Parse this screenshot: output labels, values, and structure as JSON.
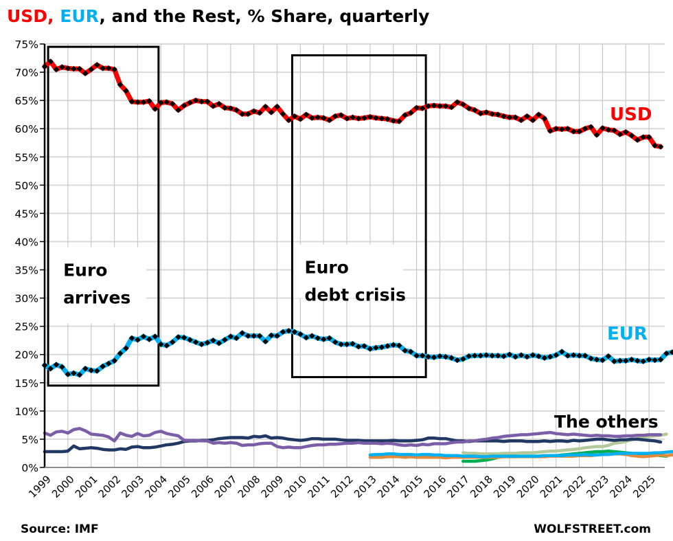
{
  "chart_data": {
    "type": "line",
    "title": {
      "parts": [
        {
          "text": "USD, ",
          "color": "#ff0000"
        },
        {
          "text": "EUR",
          "color": "#00b0f0"
        },
        {
          "text": ", and the Rest, % Share, quarterly",
          "color": "#000000"
        }
      ]
    },
    "xlabel": "",
    "ylabel": "",
    "ylim": [
      0,
      75
    ],
    "y_ticks": [
      "0%",
      "5%",
      "10%",
      "15%",
      "20%",
      "25%",
      "30%",
      "35%",
      "40%",
      "45%",
      "50%",
      "55%",
      "60%",
      "65%",
      "70%",
      "75%"
    ],
    "y_tick_values": [
      0,
      5,
      10,
      15,
      20,
      25,
      30,
      35,
      40,
      45,
      50,
      55,
      60,
      65,
      70,
      75
    ],
    "x_ticks": [
      "1999",
      "2000",
      "2001",
      "2002",
      "2003",
      "2004",
      "2005",
      "2006",
      "2007",
      "2008",
      "2009",
      "2010",
      "2011",
      "2012",
      "2013",
      "2014",
      "2015",
      "2016",
      "2017",
      "2018",
      "2019",
      "2020",
      "2021",
      "2022",
      "2023",
      "2024",
      "2025"
    ],
    "xlim": [
      1999,
      2025.65
    ],
    "grid": true,
    "legend": "none (inline series labels)",
    "x_start": 1999.0,
    "x_step": 0.25,
    "series": [
      {
        "name": "USD",
        "color": "#ff0000",
        "marker_color": "#000000",
        "label": "USD",
        "values": [
          71.0,
          71.9,
          70.5,
          70.9,
          70.7,
          70.6,
          70.6,
          69.8,
          70.5,
          71.3,
          70.7,
          70.7,
          70.5,
          67.8,
          66.7,
          64.8,
          64.7,
          64.7,
          64.9,
          63.5,
          64.6,
          64.7,
          64.4,
          63.3,
          64.1,
          64.6,
          65.0,
          64.8,
          64.8,
          64.0,
          64.4,
          63.7,
          63.6,
          63.3,
          62.6,
          62.6,
          63.1,
          62.8,
          63.9,
          62.9,
          63.9,
          62.6,
          61.5,
          62.2,
          61.7,
          62.5,
          61.9,
          62.0,
          61.9,
          61.5,
          62.2,
          62.4,
          61.8,
          62.0,
          61.8,
          61.9,
          62.1,
          61.9,
          61.8,
          61.7,
          61.4,
          61.3,
          62.4,
          62.8,
          63.7,
          63.6,
          64.0,
          64.1,
          64.0,
          64.0,
          63.8,
          64.7,
          64.3,
          63.6,
          63.3,
          62.7,
          62.9,
          62.6,
          62.5,
          62.2,
          62.0,
          62.0,
          61.5,
          62.2,
          61.5,
          62.5,
          61.8,
          59.6,
          60.0,
          59.9,
          60.0,
          59.5,
          59.5,
          60.0,
          60.3,
          58.9,
          60.1,
          59.8,
          59.7,
          59.0,
          59.4,
          58.8,
          58.0,
          58.5,
          58.5,
          57.0,
          56.8
        ]
      },
      {
        "name": "EUR",
        "color": "#00b0f0",
        "marker_color": "#000000",
        "label": "EUR",
        "values": [
          18.1,
          17.5,
          18.2,
          17.8,
          16.5,
          16.7,
          16.4,
          17.5,
          17.2,
          17.1,
          17.9,
          18.4,
          18.9,
          20.2,
          21.1,
          22.9,
          22.6,
          23.2,
          22.7,
          23.2,
          21.8,
          21.6,
          22.2,
          23.1,
          23.0,
          22.6,
          22.2,
          21.8,
          22.1,
          22.5,
          22.0,
          22.6,
          23.2,
          22.9,
          23.8,
          23.3,
          23.3,
          23.3,
          22.3,
          23.4,
          23.3,
          24.0,
          24.2,
          24.0,
          23.6,
          23.0,
          23.3,
          22.9,
          22.7,
          22.9,
          22.2,
          21.8,
          21.8,
          21.9,
          21.4,
          21.5,
          21.0,
          21.2,
          21.3,
          21.5,
          21.7,
          21.6,
          20.7,
          20.5,
          19.8,
          19.8,
          19.6,
          19.5,
          19.7,
          19.6,
          19.4,
          19.0,
          19.2,
          19.7,
          19.8,
          19.8,
          19.9,
          19.8,
          19.8,
          19.7,
          20.0,
          19.6,
          19.9,
          19.6,
          19.9,
          19.7,
          19.4,
          19.6,
          19.9,
          20.5,
          19.8,
          19.9,
          19.8,
          19.8,
          19.3,
          19.1,
          19.0,
          19.7,
          18.8,
          18.9,
          18.9,
          19.1,
          18.9,
          18.8,
          19.1,
          19.0,
          19.1,
          20.2,
          20.4
        ]
      },
      {
        "name": "Other (purple)",
        "color": "#7b5ea7",
        "values": [
          6.1,
          5.7,
          6.3,
          6.4,
          6.1,
          6.7,
          6.9,
          6.5,
          5.9,
          5.8,
          5.7,
          5.4,
          4.7,
          6.1,
          5.7,
          5.5,
          6.0,
          5.6,
          5.7,
          6.2,
          6.4,
          6.0,
          5.8,
          5.6,
          4.8,
          4.8,
          4.8,
          4.7,
          4.7,
          4.3,
          4.4,
          4.3,
          4.4,
          4.3,
          3.9,
          4.0,
          4.0,
          4.2,
          4.3,
          4.3,
          3.7,
          3.5,
          3.6,
          3.5,
          3.5,
          3.7,
          3.9,
          4.0,
          4.0,
          4.1,
          4.1,
          4.2,
          4.3,
          4.3,
          4.4,
          4.3,
          4.3,
          4.3,
          4.2,
          4.3,
          4.2,
          4.0,
          3.9,
          4.0,
          3.9,
          4.1,
          4.0,
          4.2,
          4.2,
          4.2,
          4.4,
          4.5,
          4.5,
          4.7,
          4.7,
          4.9,
          5.0,
          5.2,
          5.3,
          5.5,
          5.6,
          5.7,
          5.8,
          5.8,
          5.9,
          6.0,
          6.1,
          6.2,
          6.0,
          5.9,
          5.8,
          5.9,
          5.8,
          5.7,
          5.6,
          5.7,
          5.6,
          5.6,
          5.5,
          5.5,
          5.6,
          5.6,
          5.7,
          5.7,
          5.8,
          5.8,
          5.8
        ]
      },
      {
        "name": "Other (navy)",
        "color": "#1f3864",
        "values": [
          2.8,
          2.8,
          2.8,
          2.8,
          2.9,
          3.8,
          3.3,
          3.4,
          3.5,
          3.4,
          3.2,
          3.1,
          3.1,
          3.3,
          3.2,
          3.6,
          3.7,
          3.5,
          3.5,
          3.6,
          3.8,
          4.0,
          4.1,
          4.3,
          4.6,
          4.7,
          4.7,
          4.8,
          4.8,
          4.9,
          5.1,
          5.2,
          5.3,
          5.3,
          5.3,
          5.2,
          5.5,
          5.4,
          5.6,
          5.2,
          5.3,
          5.2,
          5.0,
          4.9,
          4.8,
          4.9,
          5.1,
          5.1,
          5.0,
          5.0,
          5.0,
          4.9,
          4.8,
          4.8,
          4.8,
          4.7,
          4.7,
          4.7,
          4.7,
          4.7,
          4.8,
          4.7,
          4.7,
          4.7,
          4.8,
          4.9,
          5.2,
          5.2,
          5.1,
          5.1,
          4.9,
          4.7,
          4.7,
          4.6,
          4.7,
          4.7,
          4.7,
          4.7,
          4.7,
          4.6,
          4.7,
          4.7,
          4.7,
          4.6,
          4.6,
          4.6,
          4.7,
          4.6,
          4.7,
          4.7,
          4.6,
          4.8,
          4.7,
          4.8,
          4.9,
          5.0,
          5.0,
          4.9,
          4.8,
          4.9,
          4.9,
          5.0,
          5.0,
          4.9,
          4.8,
          4.7,
          4.5
        ]
      },
      {
        "name": "Other (light blue)",
        "color": "#00b0f0",
        "start_index": 56,
        "values": [
          2.2,
          2.3,
          2.3,
          2.4,
          2.4,
          2.3,
          2.3,
          2.3,
          2.2,
          2.3,
          2.3,
          2.2,
          2.2,
          2.1,
          2.1,
          2.1,
          2.0,
          2.0,
          2.0,
          1.9,
          1.9,
          2.0,
          2.0,
          2.0,
          2.0,
          2.0,
          2.0,
          2.0,
          2.0,
          2.0,
          2.1,
          2.1,
          2.1,
          2.1,
          2.2,
          2.2,
          2.2,
          2.3,
          2.2,
          2.2,
          2.3,
          2.3,
          2.4,
          2.5,
          2.5,
          2.5,
          2.5,
          2.5,
          2.5,
          2.6,
          2.6,
          2.7,
          2.8,
          2.6,
          2.6
        ]
      },
      {
        "name": "Other (orange)",
        "color": "#e38b3b",
        "start_index": 56,
        "values": [
          1.8,
          1.8,
          1.8,
          1.9,
          1.9,
          1.9,
          1.8,
          1.9,
          1.8,
          1.8,
          1.8,
          1.8,
          1.8,
          1.7,
          1.8,
          1.8,
          1.8,
          1.8,
          1.8,
          1.8,
          1.8,
          1.8,
          1.8,
          1.9,
          1.9,
          1.9,
          1.9,
          1.9,
          1.9,
          1.9,
          1.9,
          2.0,
          2.0,
          2.0,
          2.0,
          2.0,
          2.1,
          2.1,
          2.1,
          2.2,
          2.3,
          2.3,
          2.4,
          2.4,
          2.3,
          2.1,
          2.0,
          1.9,
          2.0,
          2.1,
          2.2,
          2.1,
          2.2,
          2.2,
          2.3
        ]
      },
      {
        "name": "Other (light green)",
        "color": "#b4c99a",
        "start_index": 72,
        "values": [
          2.6,
          2.5,
          2.5,
          2.4,
          2.4,
          2.4,
          2.4,
          2.5,
          2.5,
          2.5,
          2.6,
          2.6,
          2.6,
          2.7,
          2.8,
          2.9,
          2.9,
          3.0,
          3.1,
          3.2,
          3.3,
          3.5,
          3.6,
          3.7,
          3.7,
          3.9,
          4.3,
          4.4,
          4.6,
          4.9,
          5.1,
          5.3,
          5.5,
          5.6,
          5.7,
          5.9
        ]
      },
      {
        "name": "Other (green)",
        "color": "#00b050",
        "start_index": 72,
        "values": [
          1.1,
          1.1,
          1.1,
          1.2,
          1.3,
          1.5,
          1.8,
          1.9,
          1.9,
          1.9,
          2.0,
          2.0,
          2.0,
          2.0,
          2.0,
          2.1,
          2.1,
          2.2,
          2.3,
          2.4,
          2.5,
          2.6,
          2.7,
          2.8,
          2.8,
          2.9,
          2.8,
          2.7,
          2.6,
          2.5,
          2.4,
          2.3,
          2.3,
          2.2,
          2.1,
          2.0
        ]
      }
    ],
    "annotations": [
      {
        "text": [
          "Euro",
          "arrives"
        ],
        "box_x": [
          1999.15,
          2003.9
        ],
        "box_y": [
          14.5,
          74.5
        ]
      },
      {
        "text": [
          "Euro",
          "debt crisis"
        ],
        "box_x": [
          2009.65,
          2015.4
        ],
        "box_y": [
          16.0,
          73.0
        ]
      },
      {
        "text": [
          "The others"
        ]
      }
    ],
    "series_labels": [
      {
        "text": "USD",
        "color": "#ff0000"
      },
      {
        "text": "EUR",
        "color": "#00b0f0"
      }
    ]
  },
  "footer": {
    "source": "Source: IMF",
    "brand": "WOLFSTREET.com"
  }
}
